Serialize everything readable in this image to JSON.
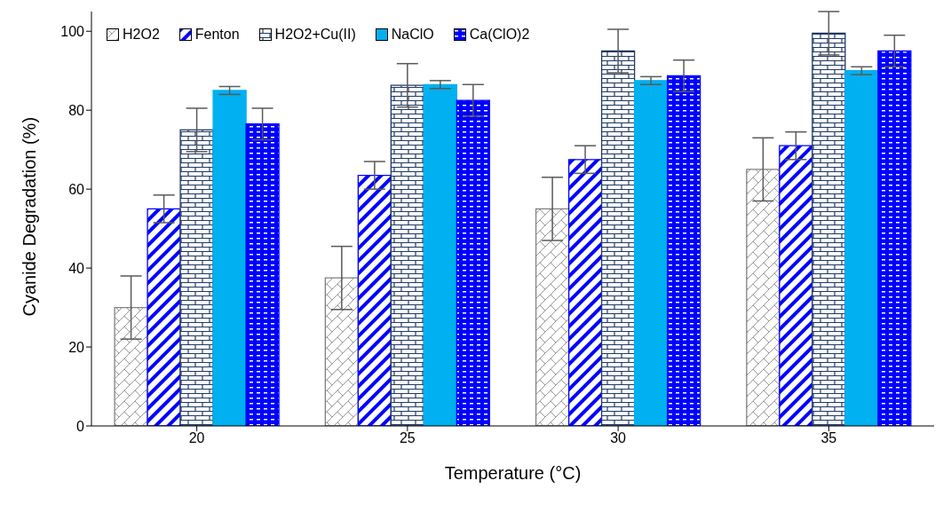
{
  "chart_data": {
    "type": "bar",
    "xlabel": "Temperature (°C)",
    "ylabel": "Cyanide Degradation (%)",
    "categories": [
      "20",
      "25",
      "30",
      "35"
    ],
    "series": [
      {
        "name": "H2O2",
        "color": "#808080",
        "values": [
          30,
          37.5,
          55,
          65
        ],
        "errors": [
          8,
          8,
          8,
          8
        ]
      },
      {
        "name": "Fenton",
        "color": "#0000ff",
        "values": [
          55,
          63.5,
          67.5,
          71
        ],
        "errors": [
          3.5,
          3.5,
          3.5,
          3.5
        ]
      },
      {
        "name": "H2O2+Cu(II)",
        "color": "#1f3864",
        "values": [
          75,
          86.3,
          95,
          99.5
        ],
        "errors": [
          5.5,
          5.5,
          5.5,
          5.5
        ]
      },
      {
        "name": "NaClO",
        "color": "#00b0f0",
        "values": [
          85,
          86.5,
          87.5,
          90
        ],
        "errors": [
          1,
          1,
          1,
          1
        ]
      },
      {
        "name": "Ca(ClO)2",
        "color": "#0000ff",
        "values": [
          76.5,
          82.5,
          88.7,
          95
        ],
        "errors": [
          4,
          4,
          4,
          4
        ]
      }
    ],
    "ylim": [
      0,
      105
    ],
    "yticks": [
      0,
      20,
      40,
      60,
      80,
      100
    ],
    "grid": false,
    "legend": "top left"
  }
}
